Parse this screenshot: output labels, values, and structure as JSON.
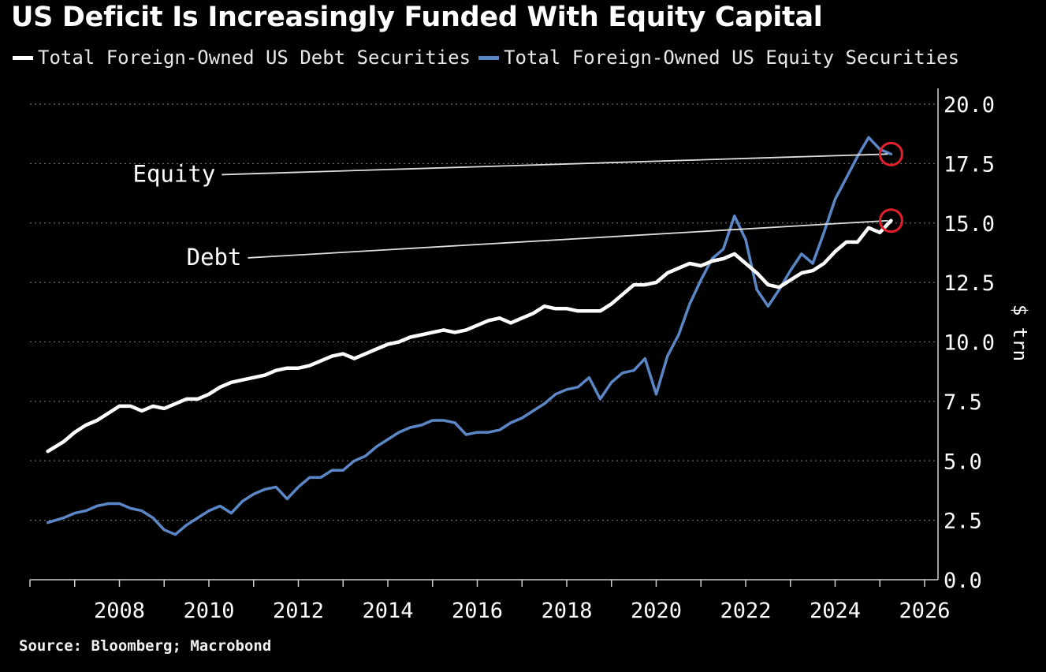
{
  "chart_data": {
    "type": "line",
    "title": "US Deficit Is Increasingly Funded With Equity Capital",
    "ylabel": "$ trn",
    "xlabel": "",
    "xlim": [
      2006,
      2026.3
    ],
    "ylim": [
      0,
      20
    ],
    "yticks": [
      "0.0",
      "2.5",
      "5.0",
      "7.5",
      "10.0",
      "12.5",
      "15.0",
      "17.5",
      "20.0"
    ],
    "xticks": [
      "2008",
      "2010",
      "2012",
      "2014",
      "2016",
      "2018",
      "2020",
      "2022",
      "2024",
      "2026"
    ],
    "grid": "horizontal dotted",
    "source": "Source: Bloomberg; Macrobond",
    "colors": {
      "debt": "#ffffff",
      "equity": "#5b87c6",
      "highlight": "#e3202b",
      "background": "#000000"
    },
    "series": [
      {
        "name": "Total Foreign-Owned US Debt Securities",
        "key": "debt",
        "x": [
          2006.4,
          2006.75,
          2007.0,
          2007.25,
          2007.5,
          2007.75,
          2008.0,
          2008.25,
          2008.5,
          2008.75,
          2009.0,
          2009.25,
          2009.5,
          2009.75,
          2010.0,
          2010.25,
          2010.5,
          2010.75,
          2011.0,
          2011.25,
          2011.5,
          2011.75,
          2012.0,
          2012.25,
          2012.5,
          2012.75,
          2013.0,
          2013.25,
          2013.5,
          2013.75,
          2014.0,
          2014.25,
          2014.5,
          2014.75,
          2015.0,
          2015.25,
          2015.5,
          2015.75,
          2016.0,
          2016.25,
          2016.5,
          2016.75,
          2017.0,
          2017.25,
          2017.5,
          2017.75,
          2018.0,
          2018.25,
          2018.5,
          2018.75,
          2019.0,
          2019.25,
          2019.5,
          2019.75,
          2020.0,
          2020.25,
          2020.5,
          2020.75,
          2021.0,
          2021.25,
          2021.5,
          2021.75,
          2022.0,
          2022.25,
          2022.5,
          2022.75,
          2023.0,
          2023.25,
          2023.5,
          2023.75,
          2024.0,
          2024.25,
          2024.5,
          2024.75,
          2025.0,
          2025.25
        ],
        "values": [
          5.4,
          5.8,
          6.2,
          6.5,
          6.7,
          7.0,
          7.3,
          7.3,
          7.1,
          7.3,
          7.2,
          7.4,
          7.6,
          7.6,
          7.8,
          8.1,
          8.3,
          8.4,
          8.5,
          8.6,
          8.8,
          8.9,
          8.9,
          9.0,
          9.2,
          9.4,
          9.5,
          9.3,
          9.5,
          9.7,
          9.9,
          10.0,
          10.2,
          10.3,
          10.4,
          10.5,
          10.4,
          10.5,
          10.7,
          10.9,
          11.0,
          10.8,
          11.0,
          11.2,
          11.5,
          11.4,
          11.4,
          11.3,
          11.3,
          11.3,
          11.6,
          12.0,
          12.4,
          12.4,
          12.5,
          12.9,
          13.1,
          13.3,
          13.2,
          13.4,
          13.5,
          13.7,
          13.3,
          12.9,
          12.4,
          12.3,
          12.6,
          12.9,
          13.0,
          13.3,
          13.8,
          14.2,
          14.2,
          14.8,
          14.6,
          15.1
        ]
      },
      {
        "name": "Total Foreign-Owned US Equity Securities",
        "key": "equity",
        "x": [
          2006.4,
          2006.75,
          2007.0,
          2007.25,
          2007.5,
          2007.75,
          2008.0,
          2008.25,
          2008.5,
          2008.75,
          2009.0,
          2009.25,
          2009.5,
          2009.75,
          2010.0,
          2010.25,
          2010.5,
          2010.75,
          2011.0,
          2011.25,
          2011.5,
          2011.75,
          2012.0,
          2012.25,
          2012.5,
          2012.75,
          2013.0,
          2013.25,
          2013.5,
          2013.75,
          2014.0,
          2014.25,
          2014.5,
          2014.75,
          2015.0,
          2015.25,
          2015.5,
          2015.75,
          2016.0,
          2016.25,
          2016.5,
          2016.75,
          2017.0,
          2017.25,
          2017.5,
          2017.75,
          2018.0,
          2018.25,
          2018.5,
          2018.75,
          2019.0,
          2019.25,
          2019.5,
          2019.75,
          2020.0,
          2020.25,
          2020.5,
          2020.75,
          2021.0,
          2021.25,
          2021.5,
          2021.75,
          2022.0,
          2022.25,
          2022.5,
          2022.75,
          2023.0,
          2023.25,
          2023.5,
          2023.75,
          2024.0,
          2024.25,
          2024.5,
          2024.75,
          2025.0,
          2025.25
        ],
        "values": [
          2.4,
          2.6,
          2.8,
          2.9,
          3.1,
          3.2,
          3.2,
          3.0,
          2.9,
          2.6,
          2.1,
          1.9,
          2.3,
          2.6,
          2.9,
          3.1,
          2.8,
          3.3,
          3.6,
          3.8,
          3.9,
          3.4,
          3.9,
          4.3,
          4.3,
          4.6,
          4.6,
          5.0,
          5.2,
          5.6,
          5.9,
          6.2,
          6.4,
          6.5,
          6.7,
          6.7,
          6.6,
          6.1,
          6.2,
          6.2,
          6.3,
          6.6,
          6.8,
          7.1,
          7.4,
          7.8,
          8.0,
          8.1,
          8.5,
          7.6,
          8.3,
          8.7,
          8.8,
          9.3,
          7.8,
          9.4,
          10.3,
          11.6,
          12.6,
          13.5,
          13.9,
          15.3,
          14.3,
          12.2,
          11.5,
          12.2,
          13.0,
          13.7,
          13.3,
          14.6,
          16.0,
          16.9,
          17.8,
          18.6,
          18.1,
          17.9
        ]
      }
    ],
    "annotations": [
      {
        "label": "Equity",
        "x": 2025.25,
        "y": 17.9,
        "label_x": 2008.3,
        "label_y": 17.1
      },
      {
        "label": "Debt",
        "x": 2025.25,
        "y": 15.1,
        "label_x": 2009.5,
        "label_y": 13.6
      }
    ]
  }
}
